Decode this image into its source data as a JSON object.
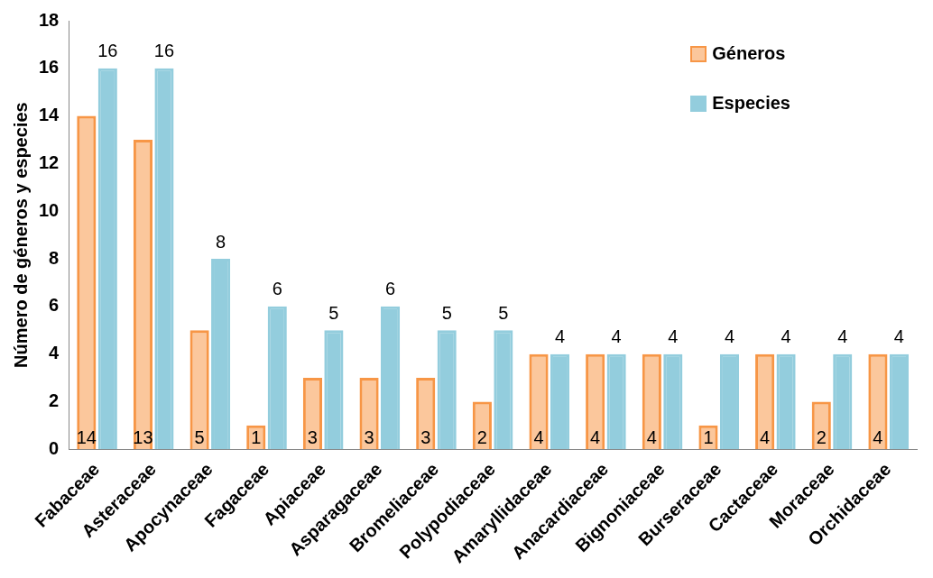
{
  "chart_data": {
    "type": "bar",
    "ylabel": "Número de géneros y especies",
    "categories": [
      "Fabaceae",
      "Asteraceae",
      "Apocynaceae",
      "Fagaceae",
      "Apiaceae",
      "Asparagaceae",
      "Bromeliaceae",
      "Polypodiaceae",
      "Amaryllidaceae",
      "Anacardiaceae",
      "Bignoniaceae",
      "Burseraceae",
      "Cactaceae",
      "Moraceae",
      "Orchidaceae"
    ],
    "series": [
      {
        "name": "Géneros",
        "color": "#f79646",
        "values": [
          14,
          13,
          5,
          1,
          3,
          3,
          3,
          2,
          4,
          4,
          4,
          1,
          4,
          2,
          4
        ]
      },
      {
        "name": "Especies",
        "color": "#93cddd",
        "values": [
          16,
          16,
          8,
          6,
          5,
          6,
          5,
          5,
          4,
          4,
          4,
          4,
          4,
          4,
          4
        ]
      }
    ],
    "data_labels": true,
    "ylim": [
      0,
      18
    ],
    "yticks": [
      0,
      2,
      4,
      6,
      8,
      10,
      12,
      14,
      16,
      18
    ],
    "grid": false,
    "legend": "top right"
  }
}
